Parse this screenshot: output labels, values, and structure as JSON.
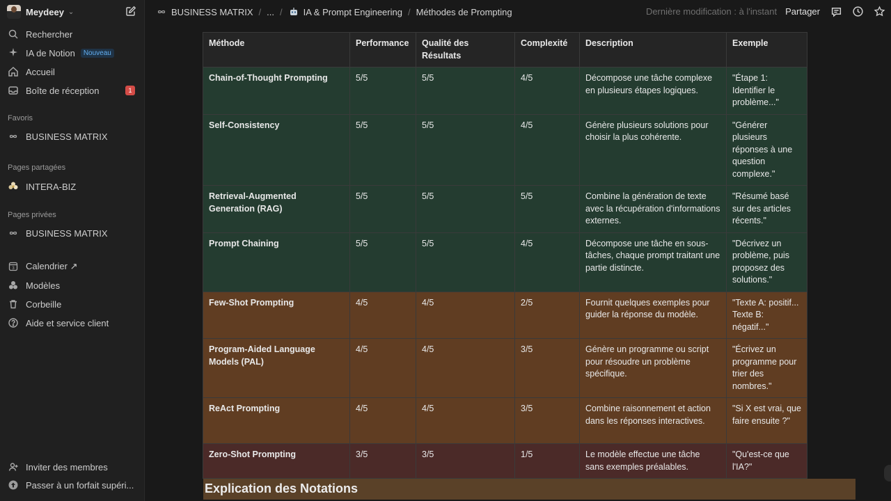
{
  "workspace": {
    "name": "Meydeey"
  },
  "sidebar": {
    "top_items": [
      {
        "label": "Rechercher",
        "icon": "search-icon"
      },
      {
        "label": "IA de Notion",
        "icon": "sparkle-icon",
        "badge": "Nouveau"
      },
      {
        "label": "Accueil",
        "icon": "home-icon"
      },
      {
        "label": "Boîte de réception",
        "icon": "inbox-icon",
        "count": "1"
      }
    ],
    "favoris_label": "Favoris",
    "favoris": [
      {
        "label": "BUSINESS MATRIX",
        "icon": "infinity-icon"
      }
    ],
    "shared_label": "Pages partagées",
    "shared": [
      {
        "label": "INTERA-BIZ",
        "icon": "flower-icon"
      }
    ],
    "private_label": "Pages privées",
    "private": [
      {
        "label": "BUSINESS MATRIX",
        "icon": "infinity-icon"
      }
    ],
    "bottom_items": [
      {
        "label": "Calendrier ↗",
        "icon": "calendar-icon"
      },
      {
        "label": "Modèles",
        "icon": "templates-icon"
      },
      {
        "label": "Corbeille",
        "icon": "trash-icon"
      },
      {
        "label": "Aide et service client",
        "icon": "help-icon"
      }
    ],
    "footer_items": [
      {
        "label": "Inviter des membres",
        "icon": "invite-icon"
      },
      {
        "label": "Passer à un forfait supéri...",
        "icon": "upgrade-icon"
      }
    ]
  },
  "topbar": {
    "breadcrumbs": [
      "BUSINESS MATRIX",
      "...",
      "IA & Prompt Engineering",
      "Méthodes de Prompting"
    ],
    "last_modified": "Dernière modification : à l'instant",
    "share_label": "Partager"
  },
  "table": {
    "headers": [
      "Méthode",
      "Performance",
      "Qualité des Résultats",
      "Complexité",
      "Description",
      "Exemple"
    ],
    "rows": [
      {
        "tone": "green",
        "cells": [
          "Chain-of-Thought Prompting",
          "5/5",
          "5/5",
          "4/5",
          "Décompose une tâche complexe en plusieurs étapes logiques.",
          "\"Étape 1: Identifier le problème...\""
        ]
      },
      {
        "tone": "green",
        "cells": [
          "Self-Consistency",
          "5/5",
          "5/5",
          "4/5",
          "Génère plusieurs solutions pour choisir la plus cohérente.",
          "\"Générer plusieurs réponses à une question complexe.\""
        ]
      },
      {
        "tone": "green",
        "cells": [
          "Retrieval-Augmented Generation (RAG)",
          "5/5",
          "5/5",
          "5/5",
          "Combine la génération de texte avec la récupération d'informations externes.",
          "\"Résumé basé sur des articles récents.\""
        ]
      },
      {
        "tone": "green",
        "cells": [
          "Prompt Chaining",
          "5/5",
          "5/5",
          "4/5",
          "Décompose une tâche en sous-tâches, chaque prompt traitant une partie distincte.",
          "\"Décrivez un problème, puis proposez des solutions.\""
        ]
      },
      {
        "tone": "brown",
        "cells": [
          "Few-Shot Prompting",
          "4/5",
          "4/5",
          "2/5",
          "Fournit quelques exemples pour guider la réponse du modèle.",
          "\"Texte A: positif... Texte B: négatif...\""
        ]
      },
      {
        "tone": "brown",
        "cells": [
          "Program-Aided Language Models (PAL)",
          "4/5",
          "4/5",
          "3/5",
          "Génère un programme ou script pour résoudre un problème spécifique.",
          "\"Écrivez un programme pour trier des nombres.\""
        ]
      },
      {
        "tone": "brown",
        "cells": [
          "ReAct Prompting",
          "4/5",
          "4/5",
          "3/5",
          "Combine raisonnement et action dans les réponses interactives.",
          "\"Si X est vrai, que faire ensuite ?\""
        ]
      },
      {
        "tone": "red",
        "cells": [
          "Zero-Shot Prompting",
          "3/5",
          "3/5",
          "1/5",
          "Le modèle effectue une tâche sans exemples préalables.",
          "\"Qu'est-ce que l'IA?\""
        ]
      }
    ]
  },
  "section_heading": "Explication des Notations"
}
